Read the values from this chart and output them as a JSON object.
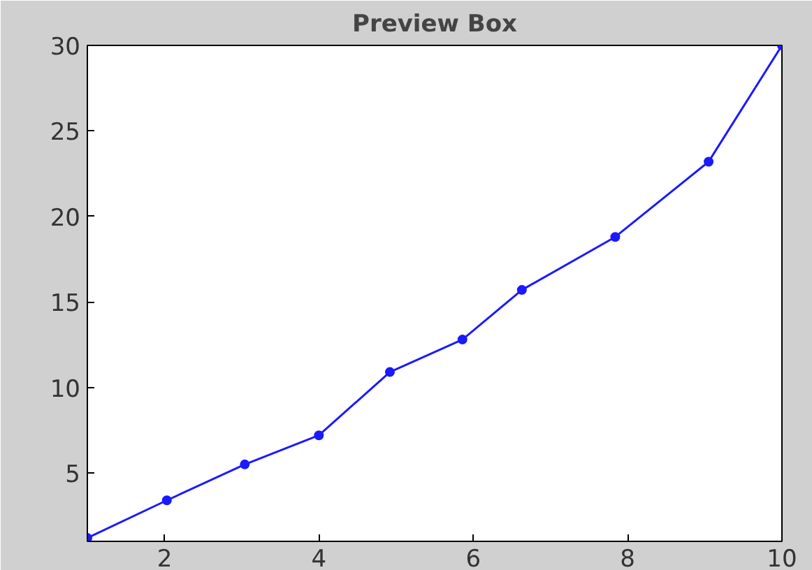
{
  "chart_data": {
    "type": "line",
    "title": "Preview Box",
    "x": [
      1,
      2.03,
      3.04,
      4.0,
      4.92,
      5.86,
      6.63,
      7.84,
      9.05,
      10
    ],
    "series": [
      {
        "color": "#1a1aff",
        "values": [
          1.2,
          3.4,
          5.5,
          7.2,
          10.9,
          12.8,
          15.7,
          18.8,
          23.2,
          30
        ]
      }
    ],
    "xlim": [
      1,
      10
    ],
    "ylim": [
      1,
      30
    ],
    "xticks": [
      2,
      4,
      6,
      8,
      10
    ],
    "yticks": [
      5,
      10,
      15,
      20,
      25,
      30
    ],
    "grid": false,
    "marker": "circle",
    "line_style": "solid"
  }
}
